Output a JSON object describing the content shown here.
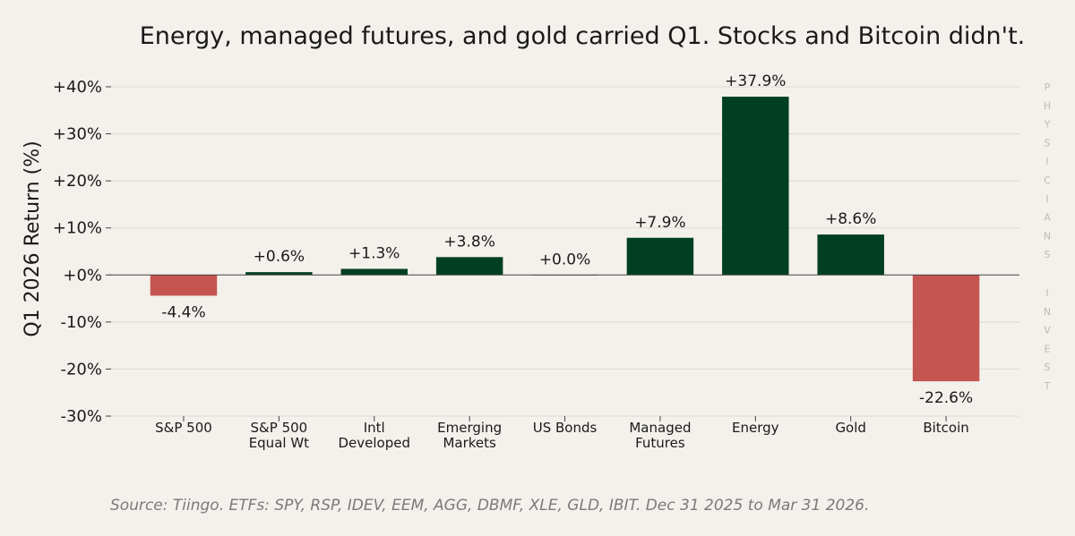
{
  "chart_data": {
    "type": "bar",
    "title": "Energy, managed futures, and gold carried Q1. Stocks and Bitcoin didn't.",
    "xlabel": "",
    "ylabel": "Q1 2026 Return (%)",
    "ylim": [
      -30,
      40
    ],
    "yticks": [
      40,
      30,
      20,
      10,
      0,
      -10,
      -20,
      -30
    ],
    "ytick_labels": [
      "+40%",
      "+30%",
      "+20%",
      "+10%",
      "+0%",
      "-10%",
      "-20%",
      "-30%"
    ],
    "grid": true,
    "categories": [
      [
        "S&P 500"
      ],
      [
        "S&P 500",
        "Equal Wt"
      ],
      [
        "Intl",
        "Developed"
      ],
      [
        "Emerging",
        "Markets"
      ],
      [
        "US Bonds"
      ],
      [
        "Managed",
        "Futures"
      ],
      [
        "Energy"
      ],
      [
        "Gold"
      ],
      [
        "Bitcoin"
      ]
    ],
    "values": [
      -4.4,
      0.6,
      1.3,
      3.8,
      0.0,
      7.9,
      37.9,
      8.6,
      -22.6
    ],
    "data_labels": [
      "-4.4%",
      "+0.6%",
      "+1.3%",
      "+3.8%",
      "+0.0%",
      "+7.9%",
      "+37.9%",
      "+8.6%",
      "-22.6%"
    ],
    "colors": {
      "positive": "#003f24",
      "negative": "#c45550"
    }
  },
  "source": "Source: Tiingo. ETFs: SPY, RSP, IDEV, EEM, AGG, DBMF, XLE, GLD, IBIT. Dec 31 2025 to Mar 31 2026.",
  "watermark": {
    "word1": [
      "P",
      "H",
      "Y",
      "S",
      "I",
      "C",
      "I",
      "A",
      "N",
      "S"
    ],
    "word2": [
      "I",
      "N",
      "V",
      "E",
      "S",
      "T"
    ]
  }
}
